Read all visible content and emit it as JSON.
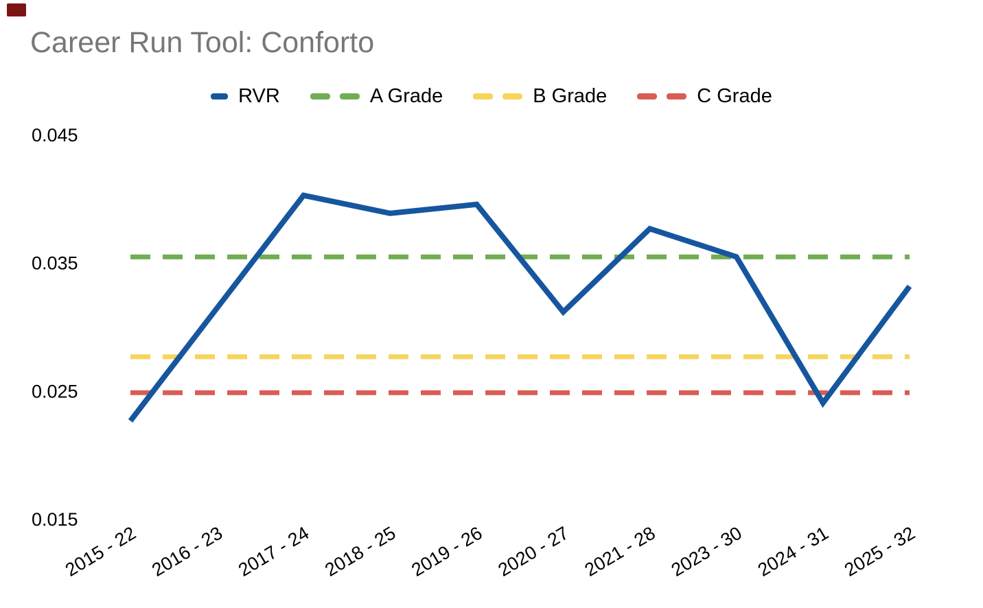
{
  "page": {
    "title": "Career Run Tool: Conforto",
    "title_color": "#777777",
    "background": "#ffffff",
    "corner_marker_color": "#7C1416"
  },
  "chart_data": {
    "type": "line",
    "title": "Career Run Tool: Conforto",
    "categories": [
      "2015 - 22",
      "2016 - 23",
      "2017 - 24",
      "2018 - 25",
      "2019 - 26",
      "2020 - 27",
      "2021 - 28",
      "2023 - 30",
      "2024 - 31",
      "2025 - 32"
    ],
    "series": [
      {
        "name": "RVR",
        "kind": "line",
        "style": "solid",
        "color": "#16569E",
        "values": [
          0.0227,
          0.0315,
          0.0403,
          0.0389,
          0.0396,
          0.0312,
          0.0377,
          0.0355,
          0.0241,
          0.0332
        ]
      },
      {
        "name": "A Grade",
        "kind": "reference-line",
        "style": "dashed",
        "color": "#71AD52",
        "value": 0.0355
      },
      {
        "name": "B Grade",
        "kind": "reference-line",
        "style": "dashed",
        "color": "#F7D45C",
        "value": 0.0277
      },
      {
        "name": "C Grade",
        "kind": "reference-line",
        "style": "dashed",
        "color": "#D95C55",
        "value": 0.0249
      }
    ],
    "xlabel": "",
    "ylabel": "",
    "ylim": [
      0.015,
      0.045
    ],
    "yticks": [
      0.045,
      0.035,
      0.025,
      0.015
    ],
    "ytick_labels": [
      "0.045",
      "0.035",
      "0.025",
      "0.015"
    ],
    "x_tick_rotation_deg": -31,
    "grid": false,
    "legend_position": "top-center",
    "axis_text_color": "#000000"
  }
}
